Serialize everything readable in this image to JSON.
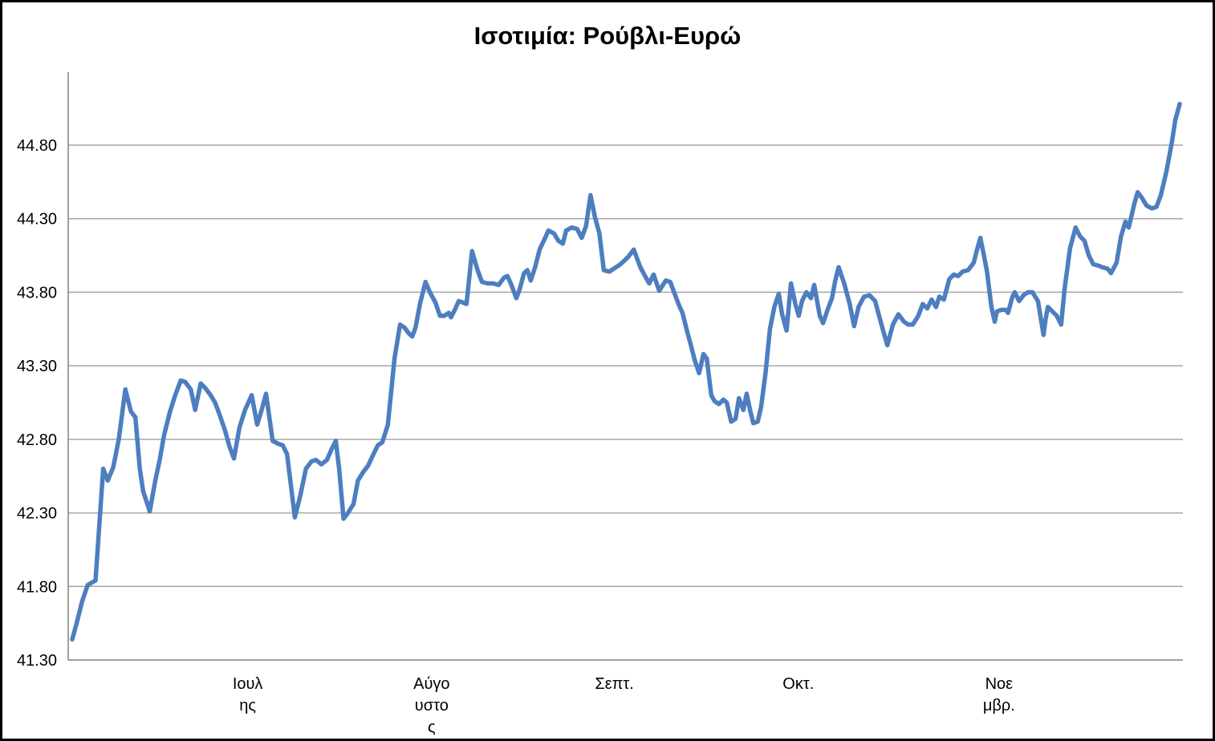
{
  "title": "Ισοτιμία: Ρούβλι-Ευρώ",
  "colors": {
    "series_line": "#4d7ebf",
    "gridline": "#a6a6a6",
    "axis": "#808080",
    "text": "#000000",
    "background": "#ffffff",
    "frame_border": "#000000"
  },
  "chart_data": {
    "type": "line",
    "title": "Ισοτιμία: Ρούβλι-Ευρώ",
    "xlabel": "",
    "ylabel": "",
    "legend": "none",
    "grid": "horizontal",
    "y_axis": {
      "min": 41.3,
      "max": 45.3,
      "tick_step": 0.5,
      "tick_labels": [
        "41.30",
        "41.80",
        "42.30",
        "42.80",
        "43.30",
        "43.80",
        "44.30",
        "44.80"
      ]
    },
    "x_axis": {
      "type": "time (months, daily points)",
      "tick_labels": [
        {
          "text": "Ιουλης",
          "lines": [
            "Ιουλ",
            "ης"
          ],
          "pos": 0.161
        },
        {
          "text": "Αύγουστος",
          "lines": [
            "Αύγο",
            "υστο",
            "ς"
          ],
          "pos": 0.326
        },
        {
          "text": "Σεπτ.",
          "lines": [
            "Σεπτ."
          ],
          "pos": 0.49
        },
        {
          "text": "Οκτ.",
          "lines": [
            "Οκτ."
          ],
          "pos": 0.655
        },
        {
          "text": "Νοεμβρ.",
          "lines": [
            "Νοε",
            "μβρ."
          ],
          "pos": 0.835
        }
      ]
    },
    "series": [
      {
        "points": [
          [
            0.0,
            41.44
          ],
          [
            0.004,
            41.55
          ],
          [
            0.009,
            41.7
          ],
          [
            0.014,
            41.81
          ],
          [
            0.021,
            41.84
          ],
          [
            0.028,
            42.6
          ],
          [
            0.032,
            42.52
          ],
          [
            0.037,
            42.61
          ],
          [
            0.042,
            42.8
          ],
          [
            0.048,
            43.14
          ],
          [
            0.053,
            42.99
          ],
          [
            0.057,
            42.95
          ],
          [
            0.061,
            42.6
          ],
          [
            0.064,
            42.45
          ],
          [
            0.07,
            42.31
          ],
          [
            0.075,
            42.52
          ],
          [
            0.079,
            42.66
          ],
          [
            0.083,
            42.83
          ],
          [
            0.088,
            42.98
          ],
          [
            0.093,
            43.1
          ],
          [
            0.098,
            43.2
          ],
          [
            0.102,
            43.19
          ],
          [
            0.107,
            43.14
          ],
          [
            0.111,
            43.0
          ],
          [
            0.116,
            43.18
          ],
          [
            0.12,
            43.15
          ],
          [
            0.125,
            43.1
          ],
          [
            0.129,
            43.05
          ],
          [
            0.133,
            42.97
          ],
          [
            0.138,
            42.86
          ],
          [
            0.142,
            42.75
          ],
          [
            0.146,
            42.67
          ],
          [
            0.151,
            42.88
          ],
          [
            0.156,
            43.0
          ],
          [
            0.162,
            43.1
          ],
          [
            0.167,
            42.9
          ],
          [
            0.171,
            43.0
          ],
          [
            0.175,
            43.11
          ],
          [
            0.181,
            42.79
          ],
          [
            0.186,
            42.77
          ],
          [
            0.19,
            42.76
          ],
          [
            0.194,
            42.7
          ],
          [
            0.201,
            42.27
          ],
          [
            0.206,
            42.42
          ],
          [
            0.211,
            42.6
          ],
          [
            0.216,
            42.65
          ],
          [
            0.22,
            42.66
          ],
          [
            0.225,
            42.63
          ],
          [
            0.23,
            42.66
          ],
          [
            0.234,
            42.73
          ],
          [
            0.238,
            42.79
          ],
          [
            0.241,
            42.6
          ],
          [
            0.245,
            42.26
          ],
          [
            0.249,
            42.3
          ],
          [
            0.254,
            42.36
          ],
          [
            0.258,
            42.52
          ],
          [
            0.263,
            42.58
          ],
          [
            0.267,
            42.62
          ],
          [
            0.272,
            42.7
          ],
          [
            0.276,
            42.76
          ],
          [
            0.28,
            42.78
          ],
          [
            0.285,
            42.9
          ],
          [
            0.291,
            43.35
          ],
          [
            0.296,
            43.58
          ],
          [
            0.3,
            43.56
          ],
          [
            0.304,
            43.52
          ],
          [
            0.307,
            43.5
          ],
          [
            0.31,
            43.56
          ],
          [
            0.314,
            43.72
          ],
          [
            0.319,
            43.87
          ],
          [
            0.323,
            43.8
          ],
          [
            0.328,
            43.73
          ],
          [
            0.332,
            43.64
          ],
          [
            0.336,
            43.64
          ],
          [
            0.34,
            43.66
          ],
          [
            0.342,
            43.63
          ],
          [
            0.346,
            43.69
          ],
          [
            0.349,
            43.74
          ],
          [
            0.353,
            43.73
          ],
          [
            0.356,
            43.72
          ],
          [
            0.361,
            44.08
          ],
          [
            0.366,
            43.95
          ],
          [
            0.37,
            43.87
          ],
          [
            0.375,
            43.86
          ],
          [
            0.38,
            43.86
          ],
          [
            0.385,
            43.85
          ],
          [
            0.39,
            43.9
          ],
          [
            0.393,
            43.91
          ],
          [
            0.396,
            43.86
          ],
          [
            0.401,
            43.76
          ],
          [
            0.404,
            43.82
          ],
          [
            0.408,
            43.93
          ],
          [
            0.411,
            43.95
          ],
          [
            0.414,
            43.88
          ],
          [
            0.418,
            43.97
          ],
          [
            0.422,
            44.09
          ],
          [
            0.427,
            44.17
          ],
          [
            0.43,
            44.22
          ],
          [
            0.435,
            44.2
          ],
          [
            0.439,
            44.15
          ],
          [
            0.443,
            44.13
          ],
          [
            0.446,
            44.22
          ],
          [
            0.451,
            44.24
          ],
          [
            0.456,
            44.23
          ],
          [
            0.46,
            44.17
          ],
          [
            0.464,
            44.25
          ],
          [
            0.468,
            44.46
          ],
          [
            0.472,
            44.31
          ],
          [
            0.476,
            44.2
          ],
          [
            0.48,
            43.95
          ],
          [
            0.485,
            43.94
          ],
          [
            0.489,
            43.96
          ],
          [
            0.495,
            43.99
          ],
          [
            0.502,
            44.04
          ],
          [
            0.507,
            44.09
          ],
          [
            0.513,
            43.97
          ],
          [
            0.518,
            43.9
          ],
          [
            0.521,
            43.86
          ],
          [
            0.525,
            43.92
          ],
          [
            0.53,
            43.81
          ],
          [
            0.536,
            43.88
          ],
          [
            0.54,
            43.87
          ],
          [
            0.544,
            43.79
          ],
          [
            0.548,
            43.71
          ],
          [
            0.551,
            43.66
          ],
          [
            0.555,
            43.54
          ],
          [
            0.559,
            43.43
          ],
          [
            0.562,
            43.34
          ],
          [
            0.566,
            43.25
          ],
          [
            0.57,
            43.38
          ],
          [
            0.573,
            43.35
          ],
          [
            0.577,
            43.1
          ],
          [
            0.58,
            43.06
          ],
          [
            0.584,
            43.04
          ],
          [
            0.588,
            43.07
          ],
          [
            0.591,
            43.05
          ],
          [
            0.595,
            42.92
          ],
          [
            0.599,
            42.94
          ],
          [
            0.602,
            43.08
          ],
          [
            0.606,
            43.0
          ],
          [
            0.609,
            43.11
          ],
          [
            0.612,
            43.0
          ],
          [
            0.615,
            42.91
          ],
          [
            0.619,
            42.92
          ],
          [
            0.622,
            43.02
          ],
          [
            0.626,
            43.25
          ],
          [
            0.63,
            43.55
          ],
          [
            0.634,
            43.7
          ],
          [
            0.638,
            43.79
          ],
          [
            0.641,
            43.65
          ],
          [
            0.645,
            43.54
          ],
          [
            0.649,
            43.86
          ],
          [
            0.653,
            43.72
          ],
          [
            0.656,
            43.64
          ],
          [
            0.659,
            43.74
          ],
          [
            0.663,
            43.8
          ],
          [
            0.667,
            43.76
          ],
          [
            0.67,
            43.85
          ],
          [
            0.675,
            43.64
          ],
          [
            0.678,
            43.59
          ],
          [
            0.682,
            43.68
          ],
          [
            0.686,
            43.76
          ],
          [
            0.689,
            43.88
          ],
          [
            0.692,
            43.97
          ],
          [
            0.697,
            43.86
          ],
          [
            0.702,
            43.72
          ],
          [
            0.706,
            43.57
          ],
          [
            0.71,
            43.7
          ],
          [
            0.715,
            43.77
          ],
          [
            0.72,
            43.78
          ],
          [
            0.725,
            43.74
          ],
          [
            0.73,
            43.6
          ],
          [
            0.733,
            43.52
          ],
          [
            0.736,
            43.44
          ],
          [
            0.741,
            43.58
          ],
          [
            0.746,
            43.65
          ],
          [
            0.751,
            43.6
          ],
          [
            0.755,
            43.58
          ],
          [
            0.759,
            43.58
          ],
          [
            0.764,
            43.64
          ],
          [
            0.768,
            43.72
          ],
          [
            0.772,
            43.69
          ],
          [
            0.776,
            43.75
          ],
          [
            0.78,
            43.7
          ],
          [
            0.783,
            43.77
          ],
          [
            0.787,
            43.75
          ],
          [
            0.792,
            43.89
          ],
          [
            0.796,
            43.92
          ],
          [
            0.8,
            43.91
          ],
          [
            0.804,
            43.94
          ],
          [
            0.809,
            43.95
          ],
          [
            0.814,
            44.0
          ],
          [
            0.817,
            44.09
          ],
          [
            0.82,
            44.17
          ],
          [
            0.823,
            44.06
          ],
          [
            0.826,
            43.94
          ],
          [
            0.83,
            43.7
          ],
          [
            0.833,
            43.6
          ],
          [
            0.835,
            43.67
          ],
          [
            0.839,
            43.68
          ],
          [
            0.843,
            43.68
          ],
          [
            0.845,
            43.66
          ],
          [
            0.849,
            43.77
          ],
          [
            0.851,
            43.8
          ],
          [
            0.855,
            43.74
          ],
          [
            0.859,
            43.78
          ],
          [
            0.863,
            43.8
          ],
          [
            0.867,
            43.8
          ],
          [
            0.872,
            43.74
          ],
          [
            0.877,
            43.51
          ],
          [
            0.879,
            43.62
          ],
          [
            0.881,
            43.7
          ],
          [
            0.885,
            43.67
          ],
          [
            0.889,
            43.64
          ],
          [
            0.893,
            43.58
          ],
          [
            0.896,
            43.82
          ],
          [
            0.901,
            44.1
          ],
          [
            0.906,
            44.24
          ],
          [
            0.91,
            44.18
          ],
          [
            0.914,
            44.15
          ],
          [
            0.918,
            44.05
          ],
          [
            0.922,
            43.99
          ],
          [
            0.927,
            43.98
          ],
          [
            0.93,
            43.97
          ],
          [
            0.935,
            43.96
          ],
          [
            0.938,
            43.93
          ],
          [
            0.943,
            44.0
          ],
          [
            0.947,
            44.18
          ],
          [
            0.951,
            44.28
          ],
          [
            0.954,
            44.24
          ],
          [
            0.959,
            44.4
          ],
          [
            0.962,
            44.48
          ],
          [
            0.966,
            44.44
          ],
          [
            0.97,
            44.39
          ],
          [
            0.975,
            44.37
          ],
          [
            0.979,
            44.38
          ],
          [
            0.983,
            44.46
          ],
          [
            0.988,
            44.62
          ],
          [
            0.993,
            44.82
          ],
          [
            0.996,
            44.97
          ],
          [
            1.0,
            45.08
          ]
        ]
      }
    ]
  }
}
